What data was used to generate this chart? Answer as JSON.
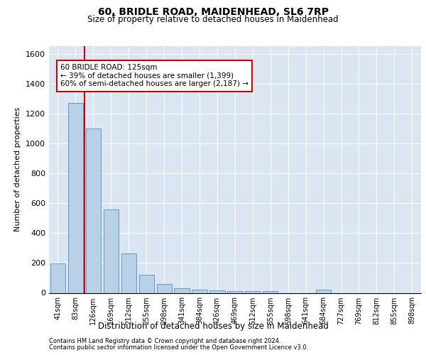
{
  "title1": "60, BRIDLE ROAD, MAIDENHEAD, SL6 7RP",
  "title2": "Size of property relative to detached houses in Maidenhead",
  "xlabel": "Distribution of detached houses by size in Maidenhead",
  "ylabel": "Number of detached properties",
  "bar_labels": [
    "41sqm",
    "83sqm",
    "126sqm",
    "169sqm",
    "212sqm",
    "255sqm",
    "298sqm",
    "341sqm",
    "384sqm",
    "426sqm",
    "469sqm",
    "512sqm",
    "555sqm",
    "598sqm",
    "641sqm",
    "684sqm",
    "727sqm",
    "769sqm",
    "812sqm",
    "855sqm",
    "898sqm"
  ],
  "bar_values": [
    197,
    1271,
    1100,
    556,
    265,
    120,
    58,
    33,
    22,
    17,
    12,
    12,
    12,
    0,
    0,
    19,
    0,
    0,
    0,
    0,
    0
  ],
  "bar_color": "#b8d0e8",
  "bar_edge_color": "#6699bb",
  "background_color": "#dce6f2",
  "grid_color": "#ffffff",
  "vline_color": "#cc0000",
  "annotation_line1": "60 BRIDLE ROAD: 125sqm",
  "annotation_line2": "← 39% of detached houses are smaller (1,399)",
  "annotation_line3": "60% of semi-detached houses are larger (2,187) →",
  "annotation_box_color": "#cc0000",
  "ylim": [
    0,
    1650
  ],
  "yticks": [
    0,
    200,
    400,
    600,
    800,
    1000,
    1200,
    1400,
    1600
  ],
  "footer1": "Contains HM Land Registry data © Crown copyright and database right 2024.",
  "footer2": "Contains public sector information licensed under the Open Government Licence v3.0."
}
